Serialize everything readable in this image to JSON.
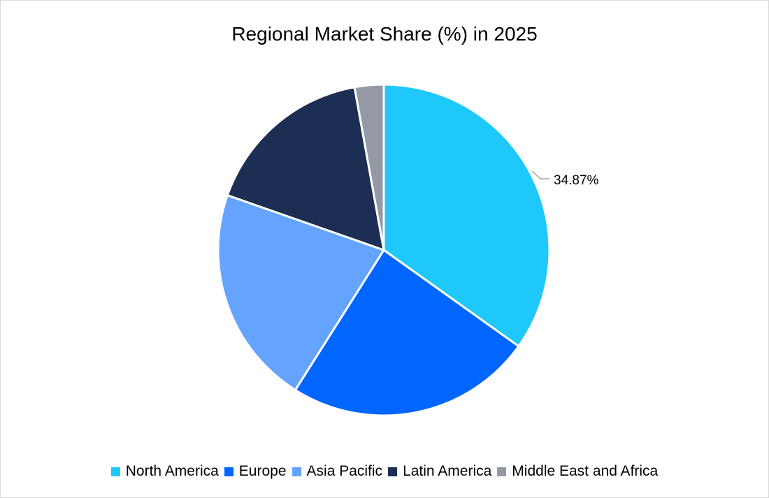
{
  "chart_data": {
    "type": "pie",
    "title": "Regional Market Share (%) in 2025",
    "categories": [
      "North America",
      "Europe",
      "Asia Pacific",
      "Latin America",
      "Middle East and Africa"
    ],
    "values": [
      34.87,
      24.1,
      21.4,
      16.8,
      2.83
    ],
    "colors": [
      "#1ec8fb",
      "#0066ff",
      "#64a4ff",
      "#1c2e54",
      "#9499a6"
    ],
    "data_labels": [
      {
        "category": "North America",
        "text": "34.87%"
      }
    ],
    "start_angle_deg": 0,
    "direction": "clockwise",
    "legend_position": "bottom"
  },
  "title": "Regional Market Share (%) in 2025",
  "legend": [
    {
      "label": "North America",
      "color": "#1ec8fb"
    },
    {
      "label": "Europe",
      "color": "#0066ff"
    },
    {
      "label": "Asia Pacific",
      "color": "#64a4ff"
    },
    {
      "label": "Latin America",
      "color": "#1c2e54"
    },
    {
      "label": "Middle East and Africa",
      "color": "#9499a6"
    }
  ],
  "labels": {
    "north_america": "34.87%"
  }
}
